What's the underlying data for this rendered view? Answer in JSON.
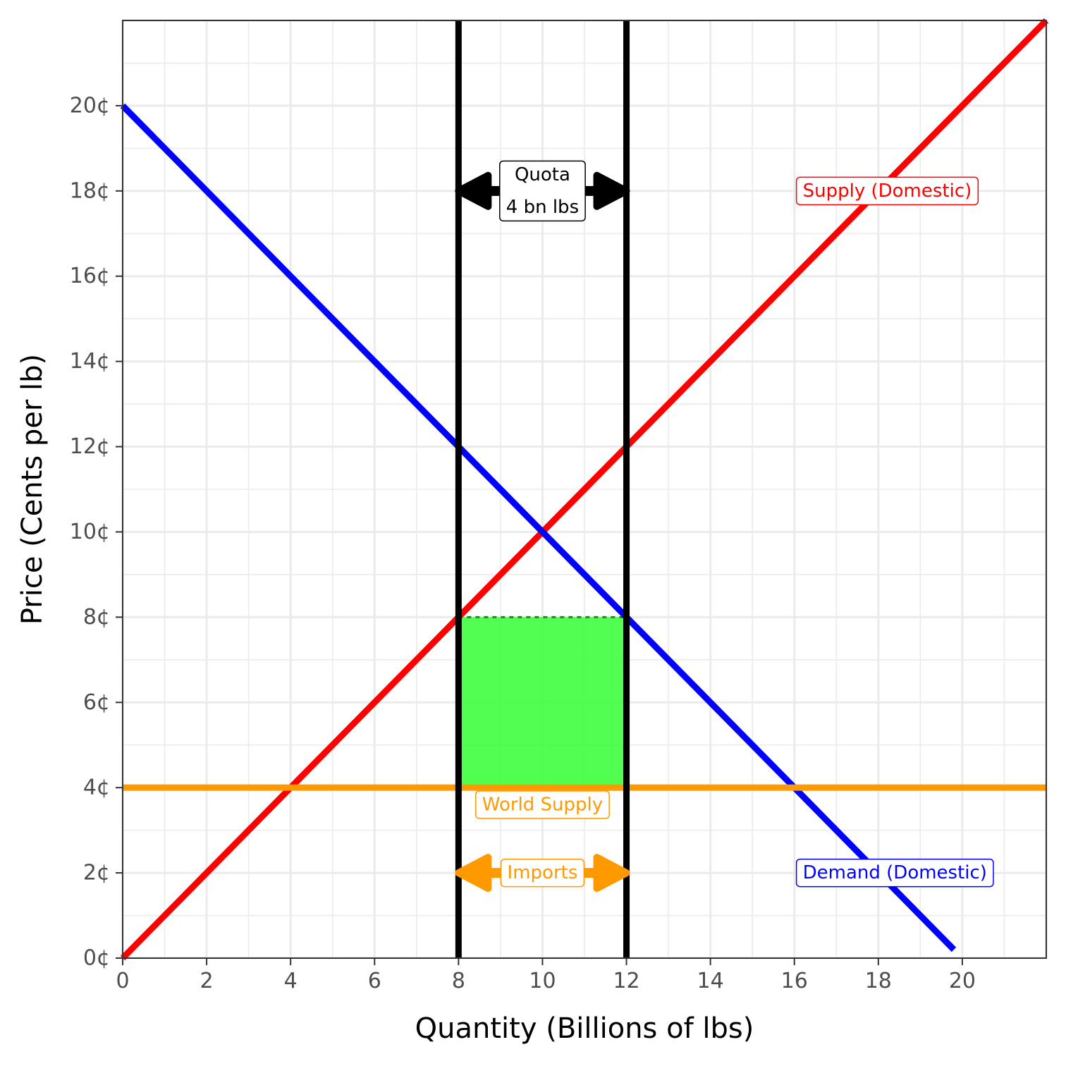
{
  "chart_data": {
    "type": "line",
    "title": "",
    "xlabel": "Quantity (Billions of lbs)",
    "ylabel": "Price (Cents per lb)",
    "xlim": [
      0,
      22
    ],
    "ylim": [
      0,
      22
    ],
    "grid": true,
    "x_ticks": [
      {
        "value": 0,
        "label": "0"
      },
      {
        "value": 2,
        "label": "2"
      },
      {
        "value": 4,
        "label": "4"
      },
      {
        "value": 6,
        "label": "6"
      },
      {
        "value": 8,
        "label": "8"
      },
      {
        "value": 10,
        "label": "10"
      },
      {
        "value": 12,
        "label": "12"
      },
      {
        "value": 14,
        "label": "14"
      },
      {
        "value": 16,
        "label": "16"
      },
      {
        "value": 18,
        "label": "18"
      },
      {
        "value": 20,
        "label": "20"
      }
    ],
    "y_ticks": [
      {
        "value": 0,
        "label": "0¢"
      },
      {
        "value": 2,
        "label": "2¢"
      },
      {
        "value": 4,
        "label": "4¢"
      },
      {
        "value": 6,
        "label": "6¢"
      },
      {
        "value": 8,
        "label": "8¢"
      },
      {
        "value": 10,
        "label": "10¢"
      },
      {
        "value": 12,
        "label": "12¢"
      },
      {
        "value": 14,
        "label": "14¢"
      },
      {
        "value": 16,
        "label": "16¢"
      },
      {
        "value": 18,
        "label": "18¢"
      },
      {
        "value": 20,
        "label": "20¢"
      }
    ],
    "series": [
      {
        "name": "Supply (Domestic)",
        "color": "#ff0000",
        "points": [
          [
            0,
            0
          ],
          [
            22,
            22
          ]
        ]
      },
      {
        "name": "Demand (Domestic)",
        "color": "#0000ff",
        "points": [
          [
            0,
            20
          ],
          [
            19.8,
            0.2
          ]
        ]
      },
      {
        "name": "World Supply",
        "color": "#ff9900",
        "points": [
          [
            0,
            4
          ],
          [
            22,
            4
          ]
        ]
      }
    ],
    "vertical_lines": [
      {
        "x": 8,
        "color": "#000000"
      },
      {
        "x": 12,
        "color": "#000000"
      }
    ],
    "shaded_region": {
      "x": [
        8,
        12
      ],
      "y": [
        4,
        8
      ],
      "color": "#33ff33"
    },
    "arrows": [
      {
        "x_from": 8,
        "x_to": 12,
        "y": 18,
        "color": "#000000"
      },
      {
        "x_from": 8,
        "x_to": 12,
        "y": 2,
        "color": "#ff9900"
      }
    ],
    "labels": [
      {
        "text": "Supply (Domestic)",
        "x": 16.2,
        "y": 18,
        "color": "#ff0000"
      },
      {
        "text": "Demand (Domestic)",
        "x": 16.2,
        "y": 2,
        "color": "#0000ff"
      },
      {
        "text": "World Supply",
        "x": 10,
        "y": 3.6,
        "color": "#ff9900"
      },
      {
        "text": "Imports",
        "x": 10,
        "y": 2,
        "color": "#ff9900"
      },
      {
        "text": "Quota\n4 bn lbs",
        "x": 10,
        "y": 18,
        "color": "#000000"
      }
    ]
  }
}
